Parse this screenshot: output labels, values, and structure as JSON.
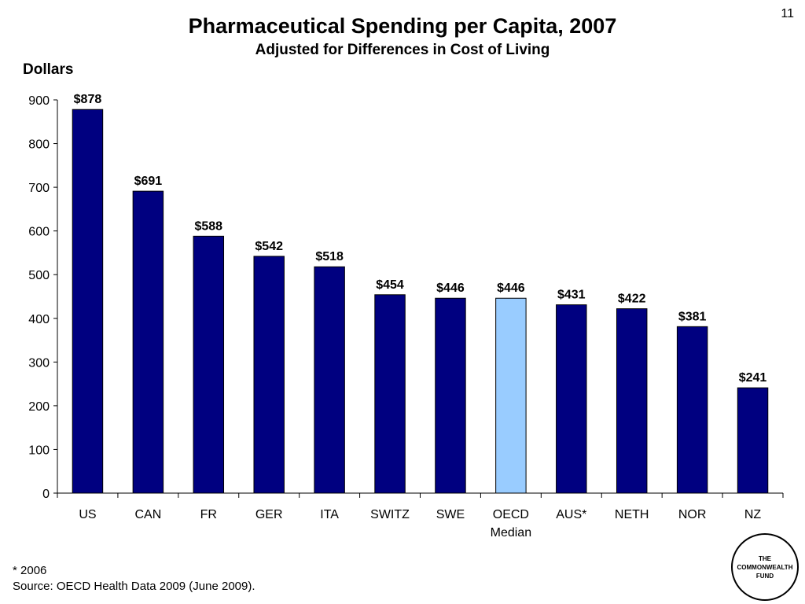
{
  "slide_number": "11",
  "chart_data": {
    "type": "bar",
    "title": "Pharmaceutical Spending per Capita, 2007",
    "subtitle": "Adjusted for Differences in Cost of Living",
    "ylabel": "Dollars",
    "xlabel": "",
    "ylim": [
      0,
      900
    ],
    "yticks": [
      "0",
      "100",
      "200",
      "300",
      "400",
      "500",
      "600",
      "700",
      "800",
      "900"
    ],
    "categories": [
      "US",
      "CAN",
      "FR",
      "GER",
      "ITA",
      "SWITZ",
      "SWE",
      "OECD\nMedian",
      "AUS*",
      "NETH",
      "NOR",
      "NZ"
    ],
    "values": [
      878,
      691,
      588,
      542,
      518,
      454,
      446,
      446,
      431,
      422,
      381,
      241
    ],
    "data_labels": [
      "$878",
      "$691",
      "$588",
      "$542",
      "$518",
      "$454",
      "$446",
      "$446",
      "$431",
      "$422",
      "$381",
      "$241"
    ],
    "bar_color": "#000080",
    "highlight_color": "#99CCFF",
    "highlight_category": "OECD\nMedian",
    "grid": false,
    "legend": "none"
  },
  "footnote": {
    "line1": "* 2006",
    "line2": "Source: OECD Health Data 2009 (June 2009)."
  },
  "logo": {
    "text": "THE\nCOMMONWEALTH\nFUND"
  }
}
